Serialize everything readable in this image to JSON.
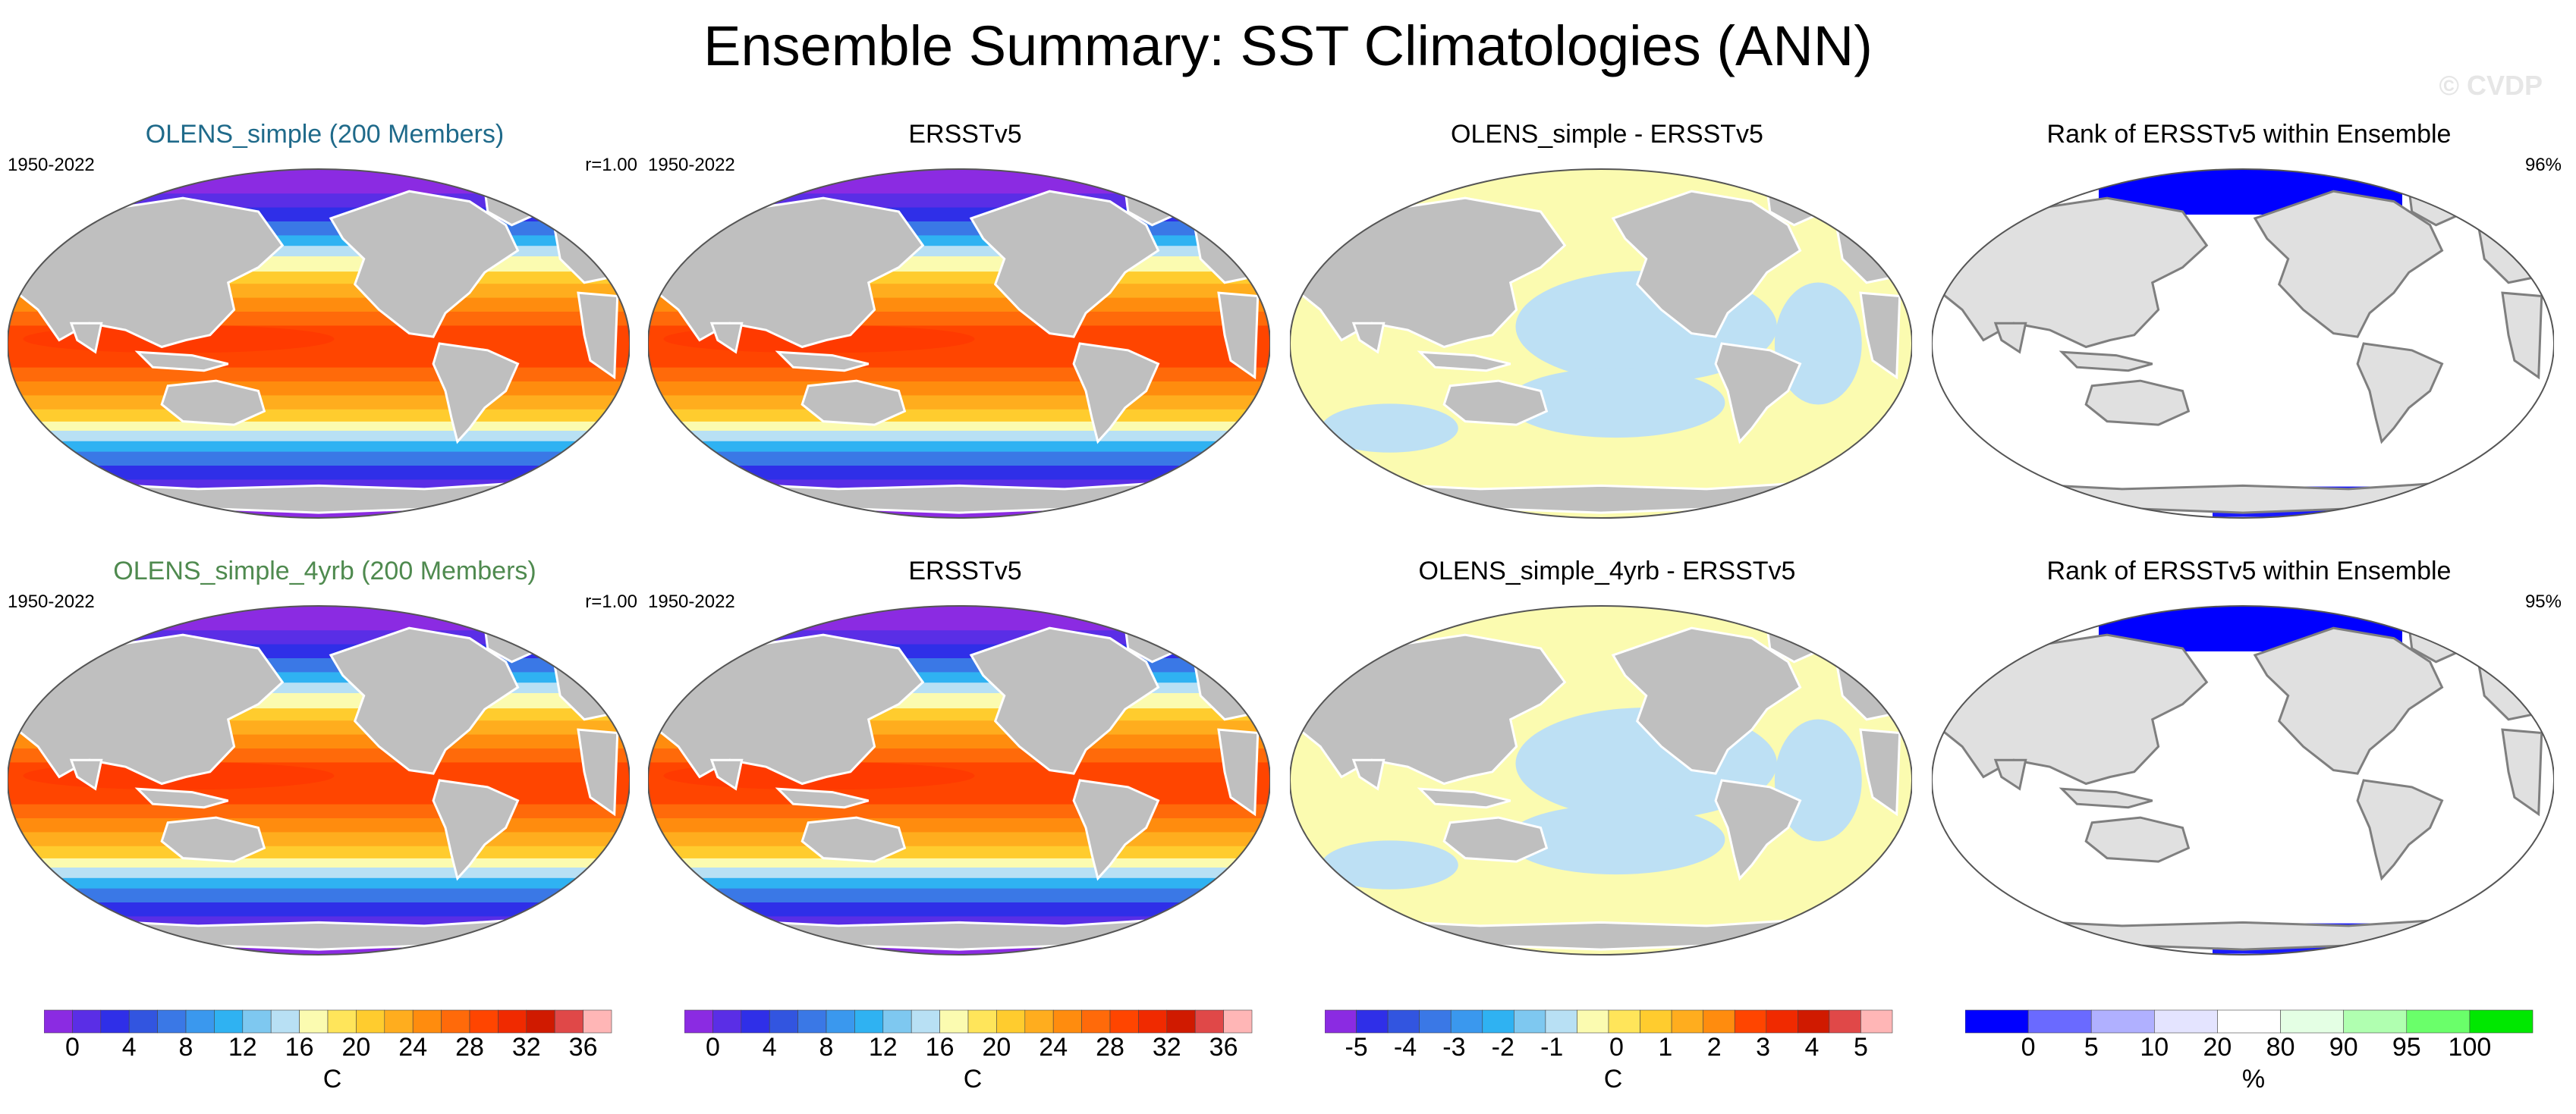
{
  "title": "Ensemble Summary: SST Climatologies (ANN)",
  "watermark": "© CVDP",
  "rows": [
    {
      "panels": [
        {
          "kind": "sst",
          "title": "OLENS_simple (200 Members)",
          "title_color": "#1f6a8a",
          "left": "1950-2022",
          "right": "r=1.00"
        },
        {
          "kind": "sst",
          "title": "ERSSTv5",
          "title_color": "#000000",
          "left": "1950-2022",
          "right": ""
        },
        {
          "kind": "diff",
          "title": "OLENS_simple - ERSSTv5",
          "title_color": "#000000",
          "left": "",
          "right": ""
        },
        {
          "kind": "rank",
          "title": "Rank of ERSSTv5 within Ensemble",
          "title_color": "#000000",
          "left": "",
          "right": "96%"
        }
      ]
    },
    {
      "panels": [
        {
          "kind": "sst",
          "title": "OLENS_simple_4yrb (200 Members)",
          "title_color": "#4f8a4f",
          "left": "1950-2022",
          "right": "r=1.00"
        },
        {
          "kind": "sst",
          "title": "ERSSTv5",
          "title_color": "#000000",
          "left": "1950-2022",
          "right": ""
        },
        {
          "kind": "diff",
          "title": "OLENS_simple_4yrb - ERSSTv5",
          "title_color": "#000000",
          "left": "",
          "right": ""
        },
        {
          "kind": "rank",
          "title": "Rank of ERSSTv5 within Ensemble",
          "title_color": "#000000",
          "left": "",
          "right": "95%"
        }
      ]
    }
  ],
  "colorbars": [
    {
      "units": "C",
      "labels": [
        "0",
        "4",
        "8",
        "12",
        "16",
        "20",
        "24",
        "28",
        "32",
        "36"
      ],
      "colors": [
        "#8b2be2",
        "#5a2ee6",
        "#2f2fe8",
        "#3255e0",
        "#3a78e6",
        "#3a98ee",
        "#2fb2f2",
        "#7ec8f0",
        "#b8e0f4",
        "#fbfbb0",
        "#ffe55a",
        "#ffcc2e",
        "#ffad1e",
        "#ff8c0e",
        "#ff6a0a",
        "#ff4500",
        "#f02a00",
        "#d01a00",
        "#e04848",
        "#ffb6b6"
      ]
    },
    {
      "units": "C",
      "labels": [
        "0",
        "4",
        "8",
        "12",
        "16",
        "20",
        "24",
        "28",
        "32",
        "36"
      ],
      "colors": [
        "#8b2be2",
        "#5a2ee6",
        "#2f2fe8",
        "#3255e0",
        "#3a78e6",
        "#3a98ee",
        "#2fb2f2",
        "#7ec8f0",
        "#b8e0f4",
        "#fbfbb0",
        "#ffe55a",
        "#ffcc2e",
        "#ffad1e",
        "#ff8c0e",
        "#ff6a0a",
        "#ff4500",
        "#f02a00",
        "#d01a00",
        "#e04848",
        "#ffb6b6"
      ]
    },
    {
      "units": "C",
      "labels": [
        "-5",
        "-4",
        "-3",
        "-2",
        "-1",
        "0",
        "1",
        "2",
        "3",
        "4",
        "5"
      ],
      "colors": [
        "#8b2be2",
        "#2f2fe8",
        "#3255e0",
        "#3a78e6",
        "#3a98ee",
        "#2fb2f2",
        "#7ec8f0",
        "#b8e0f4",
        "#fbfbb0",
        "#ffe55a",
        "#ffcc2e",
        "#ffad1e",
        "#ff8c0e",
        "#ff4500",
        "#f02a00",
        "#d01a00",
        "#e04848",
        "#ffb6b6"
      ]
    },
    {
      "units": "%",
      "labels": [
        "0",
        "5",
        "10",
        "20",
        "80",
        "90",
        "95",
        "100"
      ],
      "colors": [
        "#0000ff",
        "#6a6aff",
        "#b0b0ff",
        "#e4e4ff",
        "#ffffff",
        "#e4ffe4",
        "#b0ffb0",
        "#6aff6a",
        "#00e800"
      ]
    }
  ]
}
